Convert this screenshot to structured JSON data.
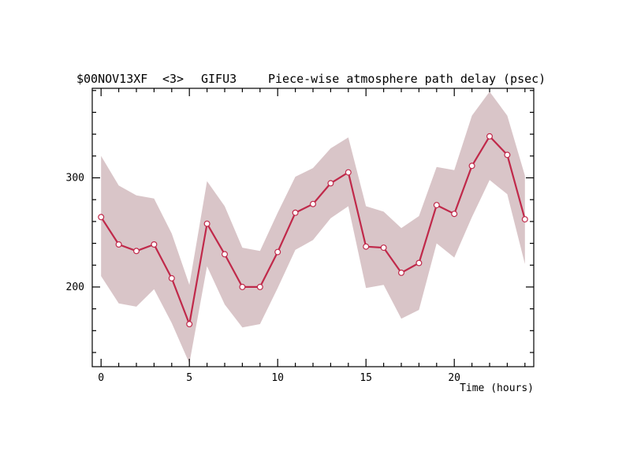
{
  "chart_data": {
    "type": "line",
    "title": {
      "source": "$00NOV13XF",
      "index": "<3>",
      "station": "GIFU3",
      "description": "Piece-wise atmosphere path delay (psec)"
    },
    "xlabel": "Time (hours)",
    "ylabel": "",
    "xlim": [
      -0.5,
      24.5
    ],
    "ylim": [
      127,
      382
    ],
    "x_ticks": [
      0,
      5,
      10,
      15,
      20
    ],
    "y_ticks": [
      200,
      300
    ],
    "grid": false,
    "legend": "none",
    "series": [
      {
        "x": [
          0,
          1,
          2,
          3,
          4,
          5,
          6,
          7,
          8,
          9,
          10,
          11,
          12,
          13,
          14,
          15,
          16,
          17,
          18,
          19,
          20,
          21,
          22,
          23,
          24
        ],
        "values": [
          264,
          239,
          233,
          239,
          208,
          166,
          258,
          230,
          200,
          200,
          232,
          268,
          276,
          295,
          305,
          237,
          236,
          213,
          222,
          275,
          267,
          311,
          338,
          321,
          262
        ],
        "upper": [
          320,
          293,
          284,
          281,
          249,
          202,
          297,
          274,
          236,
          233,
          268,
          301,
          309,
          327,
          337,
          274,
          269,
          254,
          265,
          310,
          307,
          357,
          379,
          357,
          302
        ],
        "lower": [
          210,
          185,
          182,
          198,
          167,
          130,
          219,
          184,
          163,
          166,
          199,
          234,
          243,
          263,
          274,
          199,
          202,
          171,
          179,
          240,
          227,
          264,
          298,
          285,
          221
        ]
      }
    ],
    "colors": {
      "line": "#c0294a",
      "band": "#d9c5c8",
      "marker_fill": "#ffffff",
      "frame": "#000000"
    }
  }
}
